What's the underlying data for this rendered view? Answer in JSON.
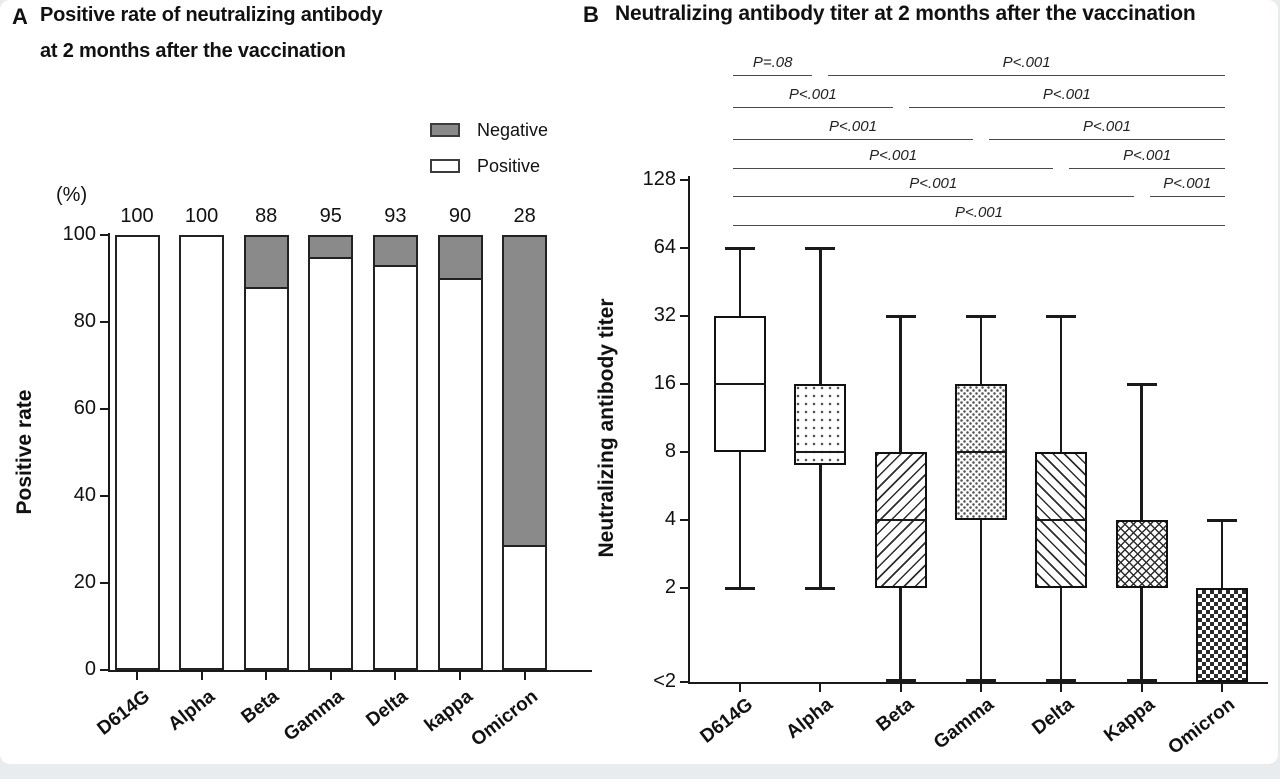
{
  "figure": {
    "panels": [
      {
        "panel_label": "A",
        "title_line1": "Positive rate of neutralizing antibody",
        "title_line2": "at 2 months after the vaccination",
        "y_axis_unit": "(%)",
        "y_axis_title": "Positive rate",
        "legend": [
          {
            "label": "Negative",
            "swatch": "gray-fill",
            "color": "#8a8a8a"
          },
          {
            "label": "Positive",
            "swatch": "white-fill",
            "color": "#ffffff"
          }
        ]
      },
      {
        "panel_label": "B",
        "title": "Neutralizing antibody titer at 2 months after the vaccination",
        "y_axis_title": "Neutralizing antibody titer"
      }
    ]
  },
  "chart_data": [
    {
      "type": "bar",
      "panel": "A",
      "title": "Positive rate of neutralizing antibody at 2 months after the vaccination",
      "stacked": true,
      "categories": [
        "D614G",
        "Alpha",
        "Beta",
        "Gamma",
        "Delta",
        "kappa",
        "Omicron"
      ],
      "series": [
        {
          "name": "Positive",
          "values": [
            100,
            100,
            88,
            95,
            93,
            90,
            28
          ],
          "fill": "#ffffff"
        },
        {
          "name": "Negative",
          "values": [
            0,
            0,
            12,
            5,
            7,
            10,
            72
          ],
          "fill": "#8a8a8a"
        }
      ],
      "bar_labels": [
        "100",
        "100",
        "88",
        "95",
        "93",
        "90",
        "28"
      ],
      "xlabel": "",
      "ylabel": "Positive rate",
      "y_unit": "(%)",
      "y_ticks": [
        0,
        20,
        40,
        60,
        80,
        100
      ],
      "ylim": [
        0,
        100
      ],
      "grid": false,
      "legend_position": "top-right"
    },
    {
      "type": "box",
      "panel": "B",
      "title": "Neutralizing antibody titer at 2 months after the vaccination",
      "scale": "log2",
      "categories": [
        "D614G",
        "Alpha",
        "Beta",
        "Gamma",
        "Delta",
        "Kappa",
        "Omicron"
      ],
      "xlabel": "",
      "ylabel": "Neutralizing antibody titer",
      "y_ticks": [
        "128",
        "64",
        "32",
        "16",
        "8",
        "4",
        "2",
        "<2"
      ],
      "grid": false,
      "boxes": [
        {
          "category": "D614G",
          "whisker_low": 2,
          "q1": 8,
          "median": 16,
          "q3": 32,
          "whisker_high": 64,
          "pattern": "solid-white"
        },
        {
          "category": "Alpha",
          "whisker_low": 2,
          "q1": 7,
          "median": 8,
          "q3": 16,
          "whisker_high": 64,
          "pattern": "dots"
        },
        {
          "category": "Beta",
          "whisker_low": "<2",
          "q1": 2,
          "median": 4,
          "q3": 8,
          "whisker_high": 32,
          "pattern": "hatch-forward"
        },
        {
          "category": "Gamma",
          "whisker_low": "<2",
          "q1": 4,
          "median": 8,
          "q3": 16,
          "whisker_high": 32,
          "pattern": "stipple"
        },
        {
          "category": "Delta",
          "whisker_low": "<2",
          "q1": 2,
          "median": 4,
          "q3": 8,
          "whisker_high": 32,
          "pattern": "hatch-back"
        },
        {
          "category": "Kappa",
          "whisker_low": "<2",
          "q1": 2,
          "median": 2,
          "q3": 4,
          "whisker_high": 16,
          "pattern": "crosshatch"
        },
        {
          "category": "Omicron",
          "whisker_low": "<2",
          "q1": "<2",
          "median": "<2",
          "q3": 2,
          "whisker_high": 4,
          "pattern": "checker"
        }
      ],
      "comparisons": [
        {
          "row": 1,
          "side": "left",
          "from": "D614G",
          "to": "Alpha",
          "p": "P=.08"
        },
        {
          "row": 1,
          "side": "right",
          "from": "Alpha",
          "to": "Omicron",
          "p": "P<.001"
        },
        {
          "row": 2,
          "side": "left",
          "from": "D614G",
          "to": "Beta",
          "p": "P<.001"
        },
        {
          "row": 2,
          "side": "right",
          "from": "Beta",
          "to": "Omicron",
          "p": "P<.001"
        },
        {
          "row": 3,
          "side": "left",
          "from": "D614G",
          "to": "Gamma",
          "p": "P<.001"
        },
        {
          "row": 3,
          "side": "right",
          "from": "Gamma",
          "to": "Omicron",
          "p": "P<.001"
        },
        {
          "row": 4,
          "side": "left",
          "from": "D614G",
          "to": "Delta",
          "p": "P<.001"
        },
        {
          "row": 4,
          "side": "right",
          "from": "Delta",
          "to": "Omicron",
          "p": "P<.001"
        },
        {
          "row": 5,
          "side": "left",
          "from": "D614G",
          "to": "Kappa",
          "p": "P<.001"
        },
        {
          "row": 5,
          "side": "right",
          "from": "Kappa",
          "to": "Omicron",
          "p": "P<.001"
        },
        {
          "row": 6,
          "side": "full",
          "from": "D614G",
          "to": "Omicron",
          "p": "P<.001"
        }
      ]
    }
  ]
}
